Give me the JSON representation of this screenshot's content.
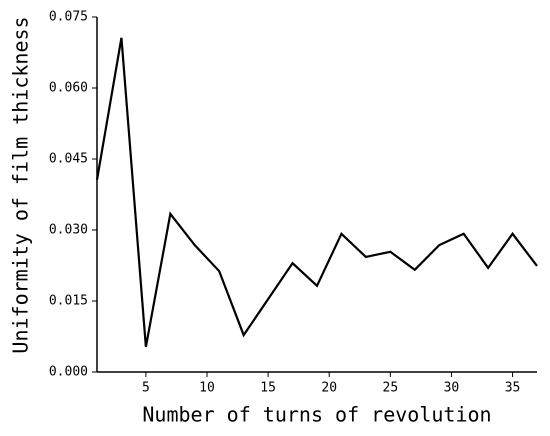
{
  "chart_data": {
    "type": "line",
    "x_label": "Number of turns of revolution",
    "y_label": "Uniformity of film thickness",
    "x": [
      1,
      3,
      5,
      7,
      9,
      11,
      13,
      15,
      17,
      19,
      21,
      23,
      25,
      27,
      29,
      31,
      33,
      35,
      37
    ],
    "series": [
      {
        "color": "#000000",
        "values": [
          0.0406,
          0.0706,
          0.0053,
          0.0334,
          0.0268,
          0.0213,
          0.0078,
          0.0154,
          0.023,
          0.0182,
          0.0292,
          0.0243,
          0.0254,
          0.0216,
          0.0268,
          0.0292,
          0.022,
          0.0292,
          0.0224
        ]
      }
    ],
    "xlim": [
      1,
      37
    ],
    "ylim": [
      0,
      0.075
    ],
    "xticks": [
      5,
      10,
      15,
      20,
      25,
      30,
      35
    ],
    "yticks": [
      {
        "value": 0,
        "label": "0.000"
      },
      {
        "value": 0.015,
        "label": "0.015"
      },
      {
        "value": 0.03,
        "label": "0.030"
      },
      {
        "value": 0.045,
        "label": "0.045"
      },
      {
        "value": 0.06,
        "label": "0.060"
      },
      {
        "value": 0.075,
        "label": "0.075"
      }
    ]
  }
}
